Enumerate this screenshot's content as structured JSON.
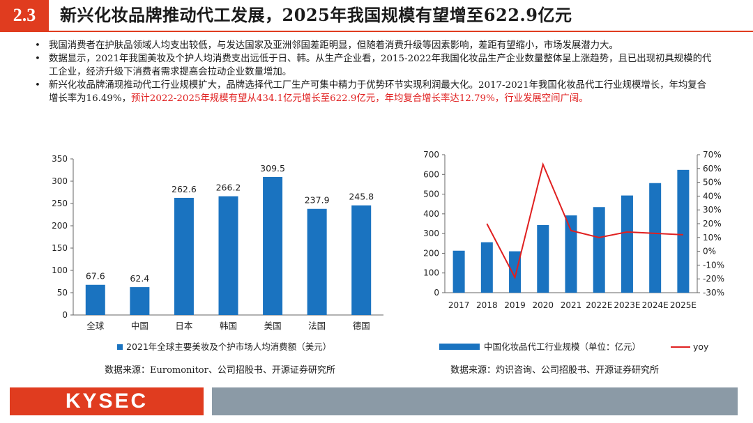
{
  "header": {
    "section": "2.3",
    "title": "新兴化妆品牌推动代工发展，2025年我国规模有望增至622.9亿元"
  },
  "bullets": [
    {
      "text": "我国消费者在护肤品领域人均支出较低，与发达国家及亚洲邻国差距明显，但随着消费升级等因素影响，差距有望缩小，市场发展潜力大。",
      "highlight": ""
    },
    {
      "text": "数据显示，2021年我国美妆及个护人均消费支出远低于日、韩。从生产企业看，2015-2022年我国化妆品生产企业数量整体呈上涨趋势，且已出现初具规模的代工企业，经济升级下消费者需求提高会拉动企业数量增加。",
      "highlight": ""
    },
    {
      "text": "新兴化妆品牌涌现推动代工行业规模扩大，品牌选择代工厂生产可集中精力于优势环节实现利润最大化。2017-2021年我国化妆品代工行业规模增长，年均复合增长率为16.49%，",
      "highlight": "预计2022-2025年规模有望从434.1亿元增长至622.9亿元，年均复合增长率达12.79%，行业发展空间广阔。"
    }
  ],
  "bullet_symbol": "•",
  "chart_data": [
    {
      "type": "bar",
      "categories": [
        "全球",
        "中国",
        "日本",
        "韩国",
        "美国",
        "法国",
        "德国"
      ],
      "values": [
        67.6,
        62.4,
        262.6,
        266.2,
        309.5,
        237.9,
        245.8
      ],
      "data_labels": [
        "67.6",
        "62.4",
        "262.6",
        "266.2",
        "309.5",
        "237.9",
        "245.8"
      ],
      "ylim": [
        0,
        350
      ],
      "yticks": [
        "0",
        "50",
        "100",
        "150",
        "200",
        "250",
        "300",
        "350"
      ],
      "legend": "2021年全球主要美妆及个护市场人均消费额（美元）",
      "legend_position": "bottom",
      "color": "#1a73c0",
      "source": "数据来源：Euromonitor、公司招股书、开源证券研究所"
    },
    {
      "type": "bar+line",
      "categories": [
        "2017",
        "2018",
        "2019",
        "2020",
        "2021",
        "2022E",
        "2023E",
        "2024E",
        "2025E"
      ],
      "series": [
        {
          "name": "中国化妆品代工行业规模（单位：亿元）",
          "type": "bar",
          "axis": "left",
          "values": [
            213,
            256,
            210,
            343,
            392,
            434.1,
            493,
            556,
            622.9
          ],
          "color": "#1a73c0"
        },
        {
          "name": "yoy",
          "type": "line",
          "axis": "right",
          "values": [
            null,
            20,
            -19,
            63,
            15,
            10,
            14,
            13,
            12
          ],
          "color": "#e02020"
        }
      ],
      "ylim_left": [
        0,
        700
      ],
      "ylim_right": [
        -30,
        70
      ],
      "yticks_left": [
        "0",
        "100",
        "200",
        "300",
        "400",
        "500",
        "600",
        "700"
      ],
      "yticks_right": [
        "-30%",
        "-20%",
        "-10%",
        "0%",
        "10%",
        "20%",
        "30%",
        "40%",
        "50%",
        "60%",
        "70%"
      ],
      "legend_position": "bottom",
      "source": "数据来源：灼识咨询、公司招股书、开源证券研究所"
    }
  ],
  "footer": {
    "logo": "KYSEC"
  }
}
